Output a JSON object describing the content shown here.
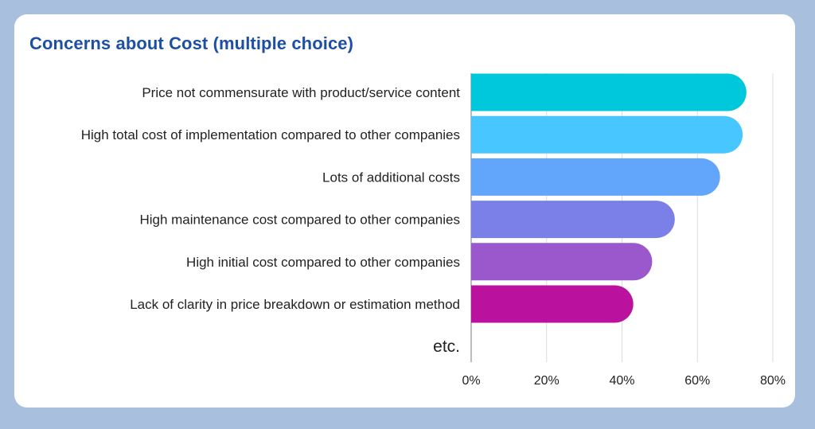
{
  "chart_data": {
    "type": "bar",
    "orientation": "horizontal",
    "title": "Concerns about Cost (multiple choice)",
    "categories": [
      "Price not commensurate with product/service content",
      "High total cost of implementation compared to other companies",
      "Lots of additional costs",
      "High maintenance cost compared to other companies",
      "High initial cost compared to other companies",
      "Lack of clarity in price breakdown or estimation method",
      "etc."
    ],
    "values": [
      73,
      72,
      66,
      54,
      48,
      43,
      0
    ],
    "colors": [
      "#00c8dc",
      "#47c6ff",
      "#62a6fb",
      "#7b80e8",
      "#9b57cc",
      "#bb119f",
      "#cccccc"
    ],
    "xlim": [
      0,
      80
    ],
    "xticks": [
      0,
      20,
      40,
      60,
      80
    ],
    "xtick_labels": [
      "0%",
      "20%",
      "40%",
      "60%",
      "80%"
    ],
    "grid": true,
    "legend": "none"
  }
}
